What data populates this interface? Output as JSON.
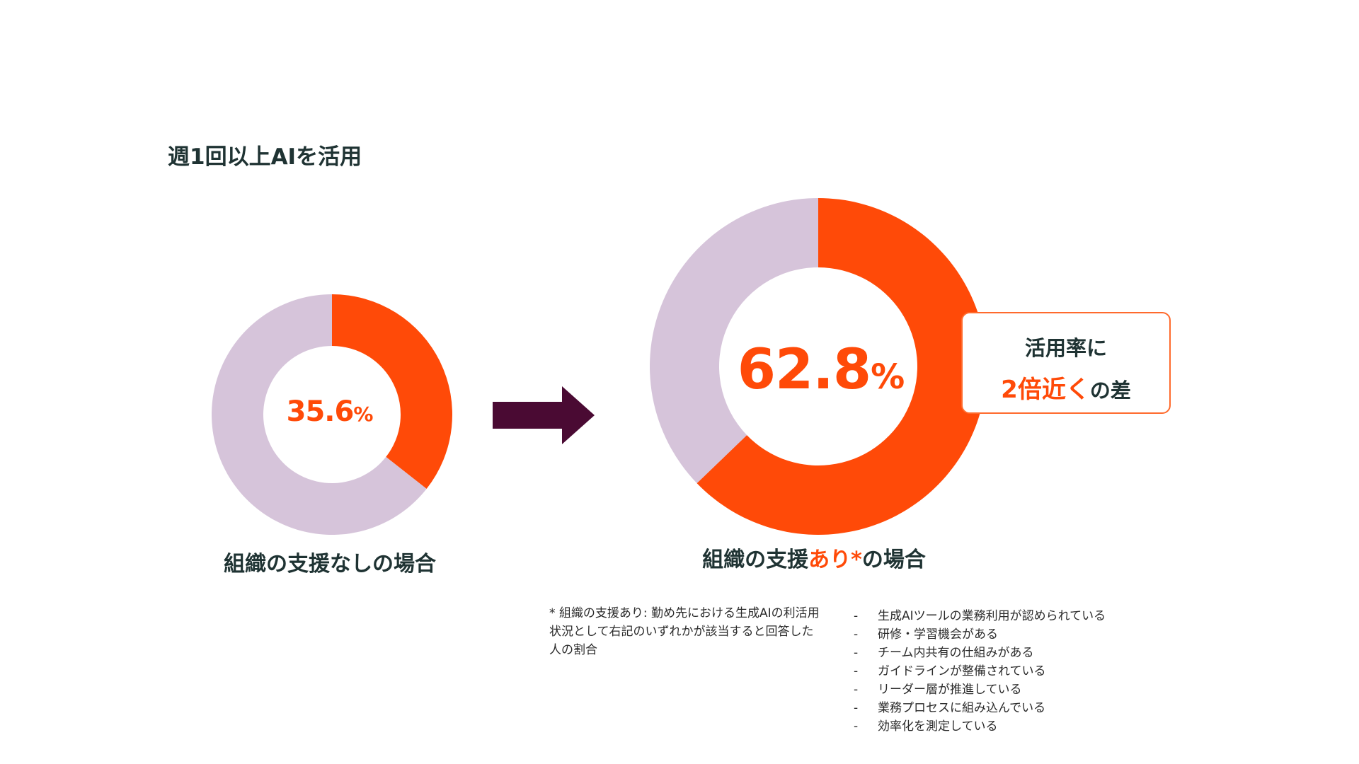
{
  "heading": "週1回以上AIを活用",
  "chart_data": [
    {
      "type": "pie",
      "donut": true,
      "label": "組織の支援なしの場合",
      "value_text": "35.6",
      "unit": "%",
      "slices": [
        {
          "name": "",
          "value": 35.6,
          "color": "#ff4a08"
        },
        {
          "name": "",
          "value": 64.4,
          "color": "#d6c4da"
        }
      ]
    },
    {
      "type": "pie",
      "donut": true,
      "label_parts": [
        "組織の支援",
        "あり*",
        "の場合"
      ],
      "value_text": "62.8",
      "unit": "%",
      "slices": [
        {
          "name": "",
          "value": 62.8,
          "color": "#ff4a08"
        },
        {
          "name": "",
          "value": 37.2,
          "color": "#d6c4da"
        }
      ]
    }
  ],
  "arrow_color": "#4a0a33",
  "callout": {
    "line1": "活用率に",
    "line2_accent": "2倍近く",
    "line2_rest": "の差"
  },
  "footnote": "* 組織の支援あり: 勤め先における生成AIの利活用状況として右記のいずれかが該当すると回答した人の割合",
  "criteria": [
    "生成AIツールの業務利用が認められている",
    "研修・学習機会がある",
    "チーム内共有の仕組みがある",
    "ガイドラインが整備されている",
    "リーダー層が推進している",
    "業務プロセスに組み込んでいる",
    "効率化を測定している"
  ]
}
